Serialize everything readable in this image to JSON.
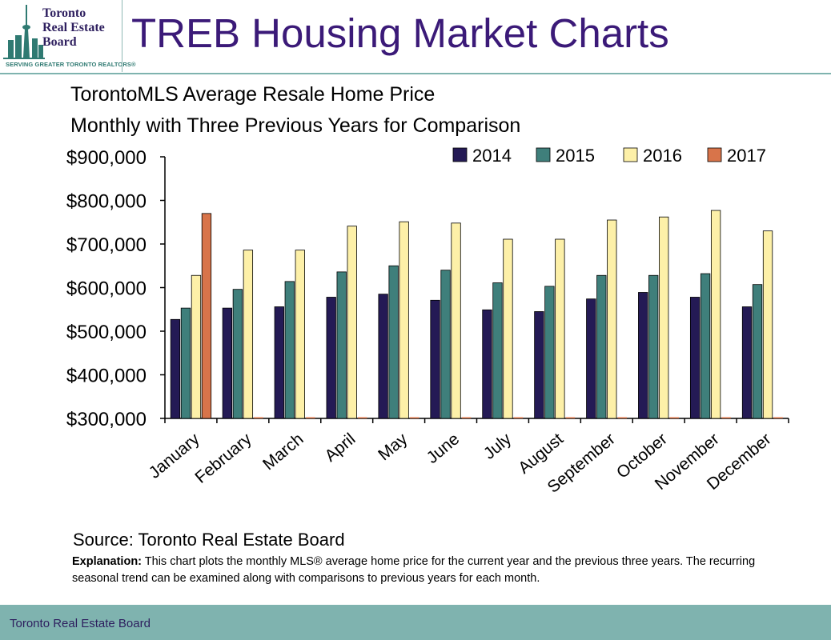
{
  "header": {
    "logo": {
      "line1": "Toronto",
      "line2": "Real Estate",
      "line3": "Board",
      "tagline": "SERVING GREATER TORONTO REALTORS®"
    },
    "title": "TREB Housing Market Charts"
  },
  "colors": {
    "title": "#3b1a78",
    "accent": "#7fb3af",
    "s2014": "#241a55",
    "s2015": "#3f7f7b",
    "s2016": "#fdf0a8",
    "s2017": "#d8744a"
  },
  "chart_data": {
    "type": "bar",
    "title": "TorontoMLS Average Resale Home Price",
    "subtitle": "Monthly with Three Previous Years for Comparison",
    "xlabel": "",
    "ylabel": "",
    "ylim": [
      300000,
      900000
    ],
    "yticks": [
      "$300,000",
      "$400,000",
      "$500,000",
      "$600,000",
      "$700,000",
      "$800,000",
      "$900,000"
    ],
    "yticks_values": [
      300000,
      400000,
      500000,
      600000,
      700000,
      800000,
      900000
    ],
    "legend_position": "top-right",
    "categories": [
      "January",
      "February",
      "March",
      "April",
      "May",
      "June",
      "July",
      "August",
      "September",
      "October",
      "November",
      "December"
    ],
    "series": [
      {
        "name": "2014",
        "values": [
          527000,
          553000,
          556000,
          578000,
          585000,
          571000,
          549000,
          545000,
          574000,
          589000,
          578000,
          556000
        ]
      },
      {
        "name": "2015",
        "values": [
          553000,
          596000,
          614000,
          636000,
          650000,
          640000,
          611000,
          603000,
          628000,
          628000,
          632000,
          607000
        ]
      },
      {
        "name": "2016",
        "values": [
          628000,
          686000,
          686000,
          741000,
          751000,
          748000,
          711000,
          711000,
          755000,
          762000,
          777000,
          730000
        ]
      },
      {
        "name": "2017",
        "values": [
          770000,
          0,
          0,
          0,
          0,
          0,
          0,
          0,
          0,
          0,
          0,
          0
        ]
      }
    ]
  },
  "source": "Source: Toronto Real Estate Board",
  "explanation": {
    "label": "Explanation:",
    "text": " This chart plots the monthly MLS® average home price for the current year and the previous three years. The recurring seasonal trend can be examined along with comparisons to previous years for each month."
  },
  "footer": {
    "text": "Toronto Real Estate Board"
  }
}
